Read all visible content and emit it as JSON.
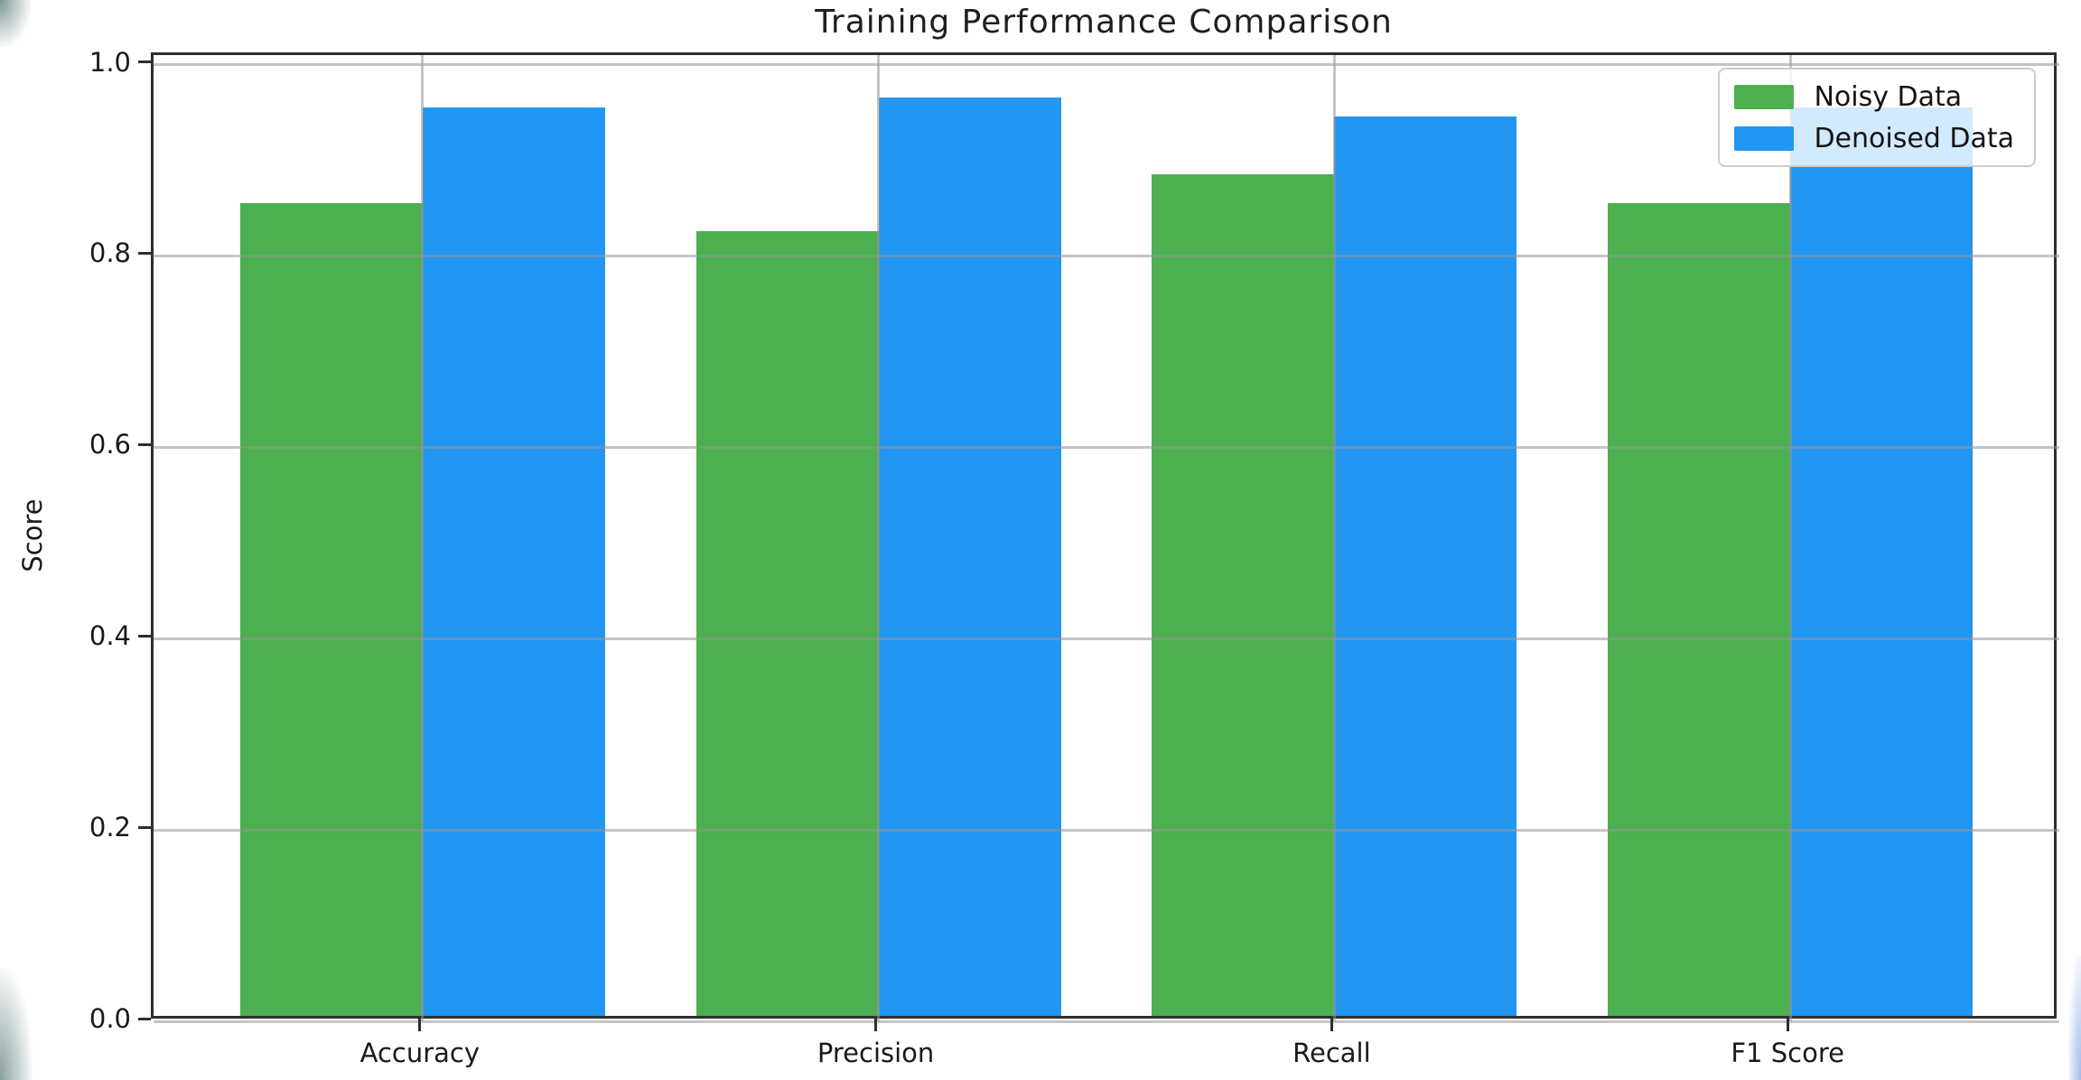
{
  "chart_data": {
    "type": "bar",
    "title": "Training Performance Comparison",
    "xlabel": "",
    "ylabel": "Score",
    "categories": [
      "Accuracy",
      "Precision",
      "Recall",
      "F1 Score"
    ],
    "series": [
      {
        "name": "Noisy Data",
        "color": "#4CAF50",
        "values": [
          0.85,
          0.82,
          0.88,
          0.85
        ]
      },
      {
        "name": "Denoised Data",
        "color": "#2196F3",
        "values": [
          0.95,
          0.96,
          0.94,
          0.95
        ]
      }
    ],
    "bar_width": 0.4,
    "ylim": [
      0,
      1.01
    ],
    "xlim": [
      -0.59,
      3.59
    ],
    "yticks": [
      0.0,
      0.2,
      0.4,
      0.6,
      0.8,
      1.0
    ],
    "ytick_labels": [
      "0.0",
      "0.2",
      "0.4",
      "0.6",
      "0.8",
      "1.0"
    ],
    "grid": true,
    "grid_above_bars": true,
    "legend_position": "upper right"
  },
  "colors": {
    "grid": "rgba(150,150,150,0.55)",
    "spine": "#2e2e2e",
    "text": "#1a1a1a",
    "legend_border": "#cccccc",
    "legend_background": "rgba(255,255,255,0.8)",
    "edge_artifact_dark": "#12403e",
    "edge_artifact_blue": "#2d64d2"
  }
}
